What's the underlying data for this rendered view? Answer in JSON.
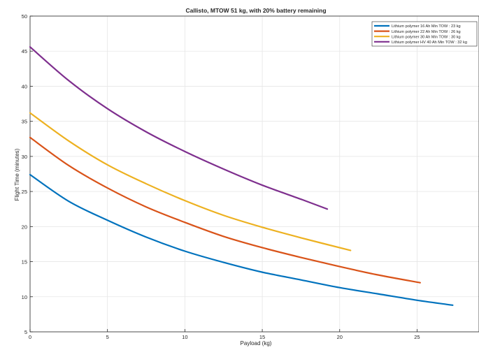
{
  "chart_data": {
    "type": "line",
    "title": "Callisto, MTOW 51 kg, with 20% battery remaining",
    "xlabel": "Payload (kg)",
    "ylabel": "Flight Time (minutes)",
    "xlim": [
      0,
      29
    ],
    "ylim": [
      5,
      50
    ],
    "xticks": [
      0,
      5,
      10,
      15,
      20,
      25
    ],
    "yticks": [
      5,
      10,
      15,
      20,
      25,
      30,
      35,
      40,
      45,
      50
    ],
    "grid": true,
    "legend_position": "top-right",
    "series": [
      {
        "name": "Lithium polymer 16 Ah Min TOW : 23 kg",
        "color": "#0072BD",
        "x": [
          0,
          2.5,
          5,
          7.5,
          10,
          12.5,
          15,
          17.5,
          20,
          22.5,
          25,
          27.3
        ],
        "y": [
          27.4,
          23.6,
          20.9,
          18.5,
          16.5,
          14.9,
          13.5,
          12.4,
          11.3,
          10.4,
          9.5,
          8.8
        ]
      },
      {
        "name": "Lithium polymer 22 Ah Min TOW : 26 kg",
        "color": "#D95319",
        "x": [
          0,
          2.5,
          5,
          7.5,
          10,
          12.5,
          15,
          17.5,
          20,
          22.5,
          25.2
        ],
        "y": [
          32.7,
          28.7,
          25.5,
          22.8,
          20.6,
          18.6,
          17.0,
          15.6,
          14.3,
          13.1,
          12.0
        ]
      },
      {
        "name": "Lithium polymer 30 Ah Min TOW : 30 kg",
        "color": "#EDB120",
        "x": [
          0,
          2.5,
          5,
          7.5,
          10,
          12.5,
          15,
          17.5,
          20.7
        ],
        "y": [
          36.2,
          32.2,
          28.8,
          26.1,
          23.7,
          21.6,
          19.9,
          18.4,
          16.6
        ]
      },
      {
        "name": "Lithium polymer HV 40 Ah Min TOW : 32 kg",
        "color": "#7E2F8E",
        "x": [
          0,
          2.5,
          5,
          7.5,
          10,
          12.5,
          15,
          17.5,
          19.2
        ],
        "y": [
          45.6,
          40.8,
          36.8,
          33.5,
          30.7,
          28.2,
          25.9,
          23.9,
          22.5
        ]
      }
    ]
  }
}
